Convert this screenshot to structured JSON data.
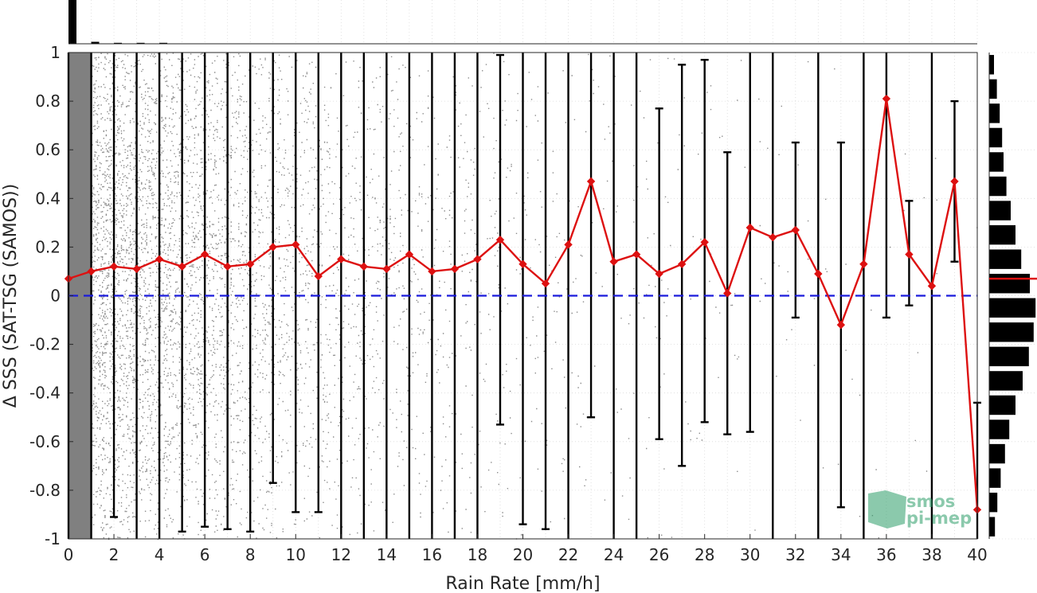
{
  "chart_data": {
    "type": "scatter",
    "xlabel": "Rain Rate [mm/h]",
    "ylabel": "Δ SSS (SAT-TSG (SAMOS))",
    "xlim": [
      0,
      40
    ],
    "ylim": [
      -1,
      1
    ],
    "xticks": [
      "0",
      "2",
      "4",
      "6",
      "8",
      "10",
      "12",
      "14",
      "16",
      "18",
      "20",
      "22",
      "24",
      "26",
      "28",
      "30",
      "32",
      "34",
      "36",
      "38",
      "40"
    ],
    "yticks": [
      "-1",
      "-0.8",
      "-0.6",
      "-0.4",
      "-0.2",
      "0",
      "0.2",
      "0.4",
      "0.6",
      "0.8",
      "1"
    ],
    "grid": true,
    "colors": {
      "mean_line": "#dd1111",
      "zero_line": "#1a1adb",
      "scatter": "#808080",
      "bars": "#000000"
    },
    "zero_line_y": 0,
    "mean_series": {
      "x": [
        0,
        1,
        2,
        3,
        4,
        5,
        6,
        7,
        8,
        9,
        10,
        11,
        12,
        13,
        14,
        15,
        16,
        17,
        18,
        19,
        20,
        21,
        22,
        23,
        24,
        25,
        26,
        27,
        28,
        29,
        30,
        31,
        32,
        33,
        34,
        35,
        36,
        37,
        38,
        39,
        40
      ],
      "y": [
        0.07,
        0.1,
        0.12,
        0.11,
        0.15,
        0.12,
        0.17,
        0.12,
        0.13,
        0.2,
        0.21,
        0.08,
        0.15,
        0.12,
        0.11,
        0.17,
        0.1,
        0.11,
        0.15,
        0.23,
        0.13,
        0.05,
        0.21,
        0.47,
        0.14,
        0.17,
        0.09,
        0.13,
        0.22,
        0.01,
        0.28,
        0.24,
        0.27,
        0.09,
        -0.12,
        0.13,
        0.81,
        0.17,
        0.04,
        0.47,
        -0.88
      ]
    },
    "error_bars": {
      "low": [
        -1,
        -1,
        -0.91,
        -1,
        -1,
        -0.97,
        -0.95,
        -0.96,
        -0.97,
        -0.77,
        -0.89,
        -0.89,
        -1,
        -1,
        -1,
        -1,
        -1,
        -1,
        -1,
        -0.53,
        -0.94,
        -0.96,
        -1,
        -0.5,
        -1,
        -1,
        -0.59,
        -0.7,
        -0.52,
        -0.57,
        -0.56,
        -1,
        -0.09,
        -1,
        -0.87,
        -1,
        -0.09,
        -0.04,
        -1,
        0.14,
        -1
      ],
      "high": [
        1,
        1,
        1,
        1,
        1,
        1,
        1,
        1,
        1,
        1,
        1,
        1,
        1,
        1,
        1,
        1,
        1,
        1,
        1,
        0.99,
        1,
        1,
        1,
        1,
        1,
        1,
        0.77,
        0.95,
        0.97,
        0.59,
        1,
        1,
        0.63,
        1,
        0.63,
        1,
        1,
        0.39,
        1,
        0.8,
        -0.44
      ]
    },
    "top_histogram": {
      "x": [
        0,
        1,
        2,
        3,
        4
      ],
      "counts": [
        1.0,
        0.045,
        0.018,
        0.008,
        0.004
      ]
    },
    "side_histogram": {
      "y": [
        0.95,
        0.85,
        0.75,
        0.65,
        0.55,
        0.45,
        0.35,
        0.25,
        0.15,
        0.05,
        -0.05,
        -0.15,
        -0.25,
        -0.35,
        -0.45,
        -0.55,
        -0.65,
        -0.75,
        -0.85,
        -0.95
      ],
      "counts": [
        0.1,
        0.16,
        0.22,
        0.27,
        0.3,
        0.36,
        0.45,
        0.55,
        0.67,
        0.85,
        0.97,
        0.93,
        0.83,
        0.7,
        0.55,
        0.42,
        0.33,
        0.24,
        0.17,
        0.12
      ],
      "mean": 0.07
    },
    "watermark": {
      "line1": "smos",
      "line2": "pi-mep"
    }
  }
}
